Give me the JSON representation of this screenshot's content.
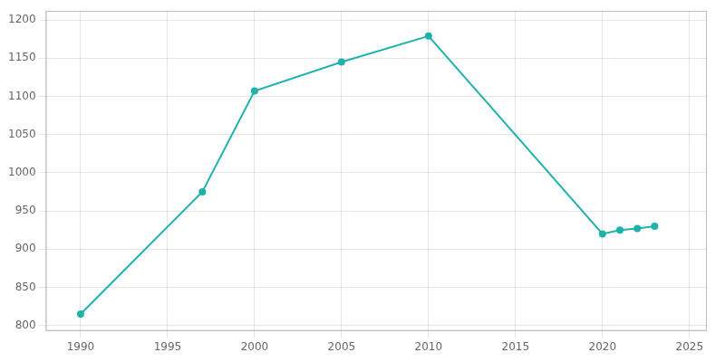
{
  "chart_data": {
    "type": "line",
    "x": [
      1990,
      1997,
      2000,
      2005,
      2010,
      2020,
      2021,
      2022,
      2023
    ],
    "values": [
      815,
      975,
      1107,
      1145,
      1179,
      920,
      925,
      927,
      930
    ],
    "color": "#20b2aa",
    "marker": "circle",
    "xlim": [
      1988,
      2026
    ],
    "ylim": [
      793,
      1212
    ],
    "xticks": [
      1990,
      1995,
      2000,
      2005,
      2010,
      2015,
      2020,
      2025
    ],
    "yticks": [
      800,
      850,
      900,
      950,
      1000,
      1050,
      1100,
      1150,
      1200
    ],
    "grid": true
  }
}
